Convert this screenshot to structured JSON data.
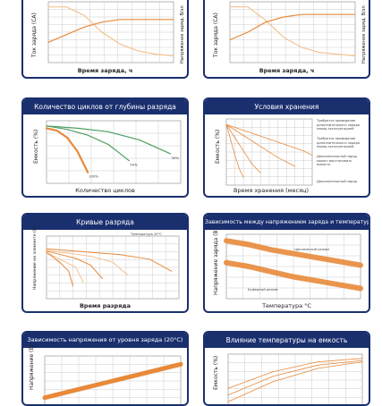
{
  "panels": {
    "charge_left": {
      "title": "",
      "ylabel": "Ток заряда (СА)",
      "ylabel2": "Напряжение заряд. В/эл",
      "xlabel": "Время заряда, ч"
    },
    "charge_right": {
      "title": "",
      "ylabel": "Ток заряда (СА)",
      "ylabel2": "Напряжение заряд. В/эл",
      "xlabel": "Время заряда, ч"
    },
    "cycles": {
      "title": "Количество циклов от глубины разряда",
      "ylabel": "Емкость (%)",
      "xlabel": "Количество циклов"
    },
    "storage": {
      "title": "Условия хранения",
      "ylabel": "Емкость (%)",
      "xlabel": "Время хранения (месяц)",
      "notes": [
        "Требуется проведение дополнительного заряда перед эксплуатацией",
        "Требуется проведение дополнительного заряда перед эксплуатацией",
        "Дополнительный заряд может восстановить емкость",
        "Дополнительный заряд"
      ]
    },
    "discharge": {
      "title": "Кривые разряда",
      "ylabel": "Напряжение на элементе (В)",
      "xlabel": "Время разряда",
      "temp_note": "Температура 25°C"
    },
    "charge_temp": {
      "title": "Зависимость между напряжением заряда и температурой",
      "ylabel": "Напряжение заряда (В)",
      "xlabel": "Температура °C",
      "label_cycle": "Циклический режим",
      "label_buffer": "Буферный режим"
    },
    "ocv": {
      "title": "Зависимость напряжения от уровня заряда (20°C)",
      "ylabel": "Напряжение (В)"
    },
    "temp_capacity": {
      "title": "Влияние температуры на емкость",
      "ylabel": "Емкость (%)"
    }
  },
  "colors": {
    "header": "#1a2f6e",
    "orange": "#e8893a",
    "light_orange": "#f4c28f",
    "green": "#4e9e63",
    "grid": "#b8b8b8"
  },
  "chart_data": [
    {
      "type": "line",
      "title": "",
      "xlabel": "Время заряда, ч",
      "ylabel": "Ток заряда (СА)",
      "series": [
        {
          "values": [
            0.3,
            0.3,
            0.25,
            0.15,
            0.08,
            0.04,
            0.02,
            0.01
          ]
        },
        {
          "values": [
            1.9,
            2.05,
            2.2,
            2.3,
            2.35,
            2.35,
            2.35,
            2.35
          ]
        }
      ]
    },
    {
      "type": "line",
      "title": "",
      "xlabel": "Время заряда, ч",
      "ylabel": "Ток заряда (СА)",
      "series": [
        {
          "values": [
            0.3,
            0.3,
            0.22,
            0.12,
            0.06,
            0.03,
            0.02,
            0.01
          ]
        },
        {
          "values": [
            1.95,
            2.1,
            2.3,
            2.4,
            2.45,
            2.45,
            2.45,
            2.45
          ]
        }
      ]
    },
    {
      "type": "line",
      "title": "Количество циклов от глубины разряда",
      "xlabel": "Количество циклов",
      "ylabel": "Емкость (%)",
      "series": [
        {
          "name": "100%",
          "x": [
            0,
            100,
            200,
            300,
            400
          ],
          "values": [
            98,
            96,
            90,
            78,
            60
          ]
        },
        {
          "name": "50%",
          "x": [
            0,
            200,
            400,
            600,
            800
          ],
          "values": [
            100,
            97,
            92,
            84,
            70
          ]
        },
        {
          "name": "30%",
          "x": [
            0,
            300,
            600,
            900,
            1200
          ],
          "values": [
            100,
            98,
            95,
            88,
            76
          ]
        }
      ]
    },
    {
      "type": "line",
      "title": "Условия хранения",
      "xlabel": "Время хранения (месяц)",
      "ylabel": "Емкость (%)",
      "series": [
        {
          "x": [
            0,
            6,
            12,
            18,
            20
          ],
          "values": [
            100,
            92,
            84,
            76,
            72
          ]
        },
        {
          "x": [
            0,
            4,
            8,
            12,
            16
          ],
          "values": [
            100,
            90,
            80,
            70,
            62
          ]
        },
        {
          "x": [
            0,
            2,
            4,
            6,
            8
          ],
          "values": [
            100,
            88,
            76,
            64,
            56
          ]
        },
        {
          "x": [
            0,
            1,
            2,
            3,
            4
          ],
          "values": [
            100,
            86,
            72,
            60,
            52
          ]
        }
      ]
    },
    {
      "type": "line",
      "title": "Кривые разряда",
      "xlabel": "Время разряда",
      "ylabel": "Напряжение на элементе (В)",
      "series": [
        {
          "x": [
            0,
            5,
            10,
            15,
            18
          ],
          "values": [
            2.05,
            1.98,
            1.9,
            1.8,
            1.6
          ]
        },
        {
          "x": [
            0,
            5,
            10,
            20,
            25
          ],
          "values": [
            2.06,
            2.0,
            1.95,
            1.85,
            1.65
          ]
        },
        {
          "x": [
            0,
            10,
            20,
            30,
            38
          ],
          "values": [
            2.07,
            2.02,
            1.97,
            1.88,
            1.7
          ]
        },
        {
          "x": [
            0,
            15,
            30,
            45,
            55
          ],
          "values": [
            2.08,
            2.04,
            2.0,
            1.92,
            1.75
          ]
        },
        {
          "x": [
            0,
            25,
            50,
            70,
            85
          ],
          "values": [
            2.1,
            2.06,
            2.02,
            1.96,
            1.8
          ]
        }
      ]
    },
    {
      "type": "area",
      "title": "Зависимость между напряжением заряда и температурой",
      "xlabel": "Температура °C",
      "ylabel": "Напряжение заряда (В)",
      "series": [
        {
          "name": "Циклический режим",
          "x": [
            -10,
            0,
            10,
            20,
            30,
            40,
            50
          ],
          "values": [
            2.55,
            2.52,
            2.48,
            2.45,
            2.42,
            2.39,
            2.36
          ]
        },
        {
          "name": "Буферный режим",
          "x": [
            -10,
            0,
            10,
            20,
            30,
            40,
            50
          ],
          "values": [
            2.38,
            2.35,
            2.31,
            2.27,
            2.24,
            2.21,
            2.18
          ]
        }
      ]
    },
    {
      "type": "area",
      "title": "Зависимость напряжения от уровня заряда (20°C)",
      "ylabel": "Напряжение (В)",
      "series": [
        {
          "x": [
            0,
            25,
            50,
            75,
            100
          ],
          "values": [
            1.95,
            2.0,
            2.05,
            2.1,
            2.15
          ]
        }
      ]
    },
    {
      "type": "line",
      "title": "Влияние температуры на емкость",
      "ylabel": "Емкость (%)",
      "series": [
        {
          "x": [
            -20,
            0,
            20,
            40
          ],
          "values": [
            60,
            85,
            100,
            105
          ]
        },
        {
          "x": [
            -20,
            0,
            20,
            40
          ],
          "values": [
            50,
            78,
            95,
            102
          ]
        },
        {
          "x": [
            -20,
            0,
            20,
            40
          ],
          "values": [
            40,
            70,
            90,
            100
          ]
        }
      ]
    }
  ]
}
